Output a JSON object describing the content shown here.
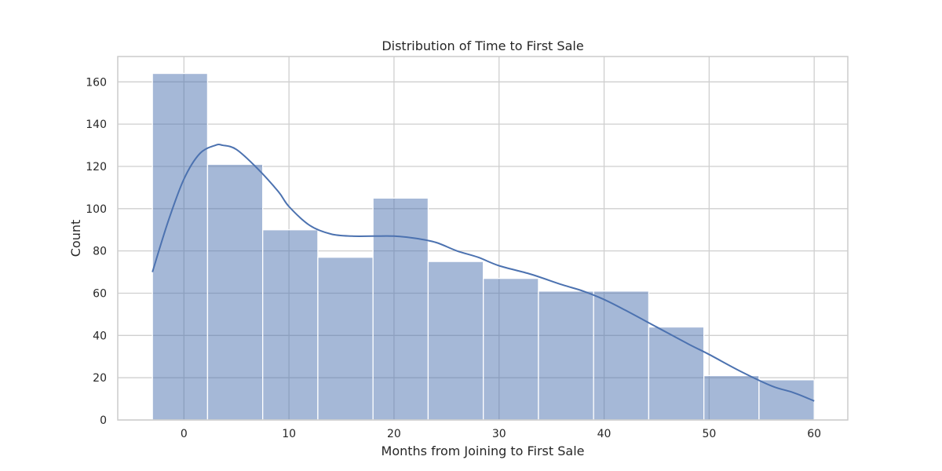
{
  "chart_data": {
    "type": "bar",
    "subtype": "histogram_with_kde",
    "title": "Distribution of Time to First Sale",
    "xlabel": "Months from Joining to First Sale",
    "ylabel": "Count",
    "xlim": [
      -6.3,
      63.2
    ],
    "ylim": [
      0,
      172
    ],
    "xticks": [
      0,
      10,
      20,
      30,
      40,
      50,
      60
    ],
    "yticks": [
      0,
      20,
      40,
      60,
      80,
      100,
      120,
      140,
      160
    ],
    "grid": true,
    "color": "#4c72b0",
    "bins": [
      {
        "x0": -3.0,
        "x1": 2.25,
        "count": 164
      },
      {
        "x0": 2.25,
        "x1": 7.5,
        "count": 121
      },
      {
        "x0": 7.5,
        "x1": 12.75,
        "count": 90
      },
      {
        "x0": 12.75,
        "x1": 18.0,
        "count": 77
      },
      {
        "x0": 18.0,
        "x1": 23.25,
        "count": 105
      },
      {
        "x0": 23.25,
        "x1": 28.5,
        "count": 75
      },
      {
        "x0": 28.5,
        "x1": 33.75,
        "count": 67
      },
      {
        "x0": 33.75,
        "x1": 39.0,
        "count": 61
      },
      {
        "x0": 39.0,
        "x1": 44.25,
        "count": 61
      },
      {
        "x0": 44.25,
        "x1": 49.5,
        "count": 44
      },
      {
        "x0": 49.5,
        "x1": 54.75,
        "count": 21
      },
      {
        "x0": 54.75,
        "x1": 60.0,
        "count": 19
      }
    ],
    "kde": {
      "x": [
        -3,
        -1.5,
        0,
        1.5,
        3,
        3.7,
        5,
        7,
        9,
        10,
        12,
        14,
        16,
        18,
        20,
        22,
        24,
        26,
        28,
        30,
        33,
        36,
        38,
        40,
        42,
        45,
        48,
        50,
        53,
        56,
        58,
        60
      ],
      "y": [
        70,
        94,
        114,
        126,
        130,
        130,
        128,
        119,
        108,
        101,
        92,
        88,
        87,
        87,
        87,
        86,
        84,
        80,
        77,
        73,
        69,
        64,
        61,
        57,
        52,
        44,
        36,
        31,
        23,
        16,
        13,
        9
      ]
    }
  }
}
